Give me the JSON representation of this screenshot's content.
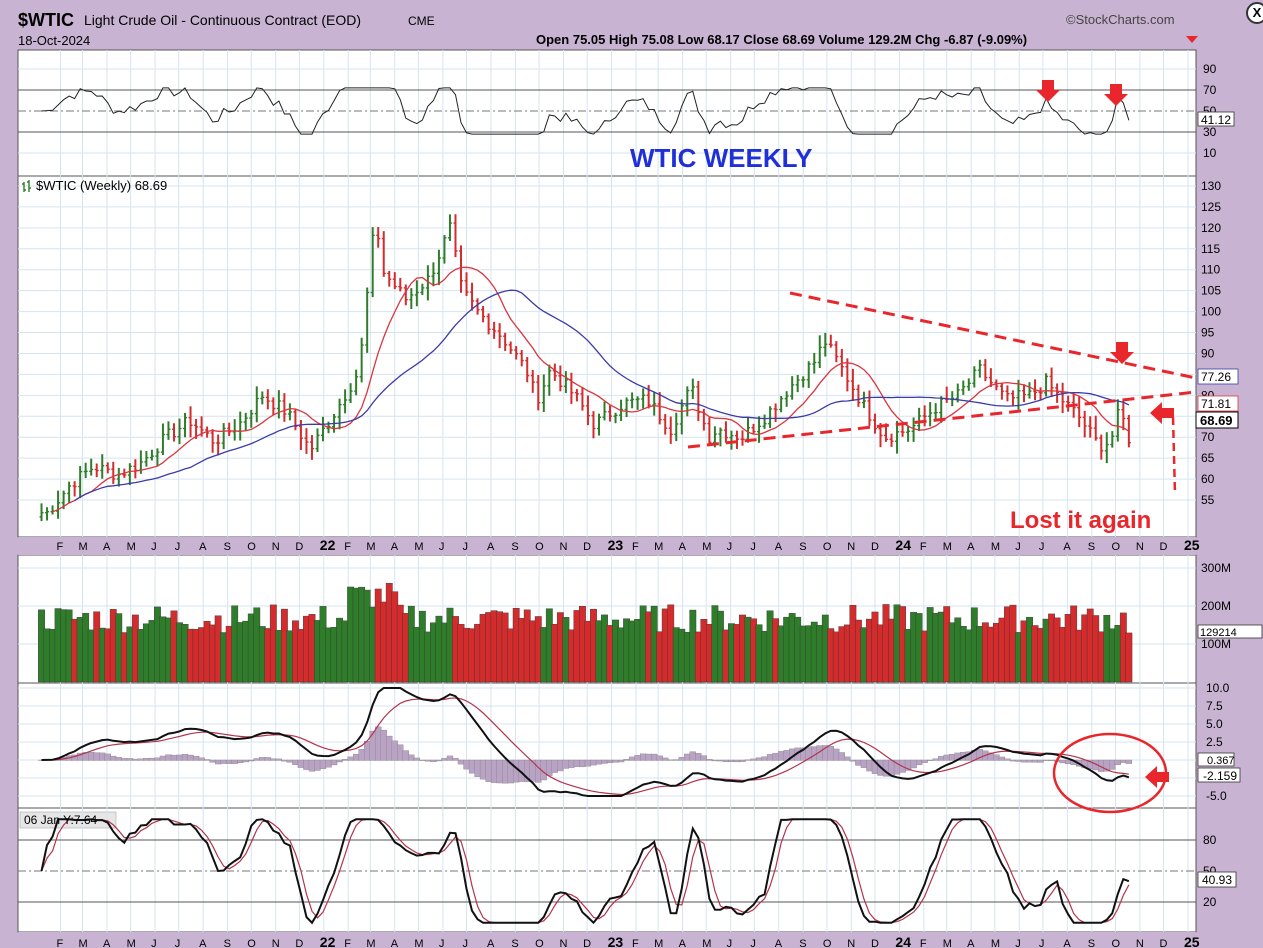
{
  "header": {
    "symbol": "$WTIC",
    "name": "Light Crude Oil - Continuous Contract (EOD)",
    "exchange": "CME",
    "date": "18-Oct-2024",
    "watermark": "©StockCharts.com",
    "ohlc_text": "Open 75.05  High 75.08  Low 68.17  Close 68.69  Volume 129.2M  Chg -6.87 (-9.09%)"
  },
  "annotations": {
    "weekly_title": "WTIC WEEKLY",
    "lost_it_again": "Lost it again"
  },
  "panels": {
    "rsi": {
      "value_label": "41.12",
      "ticks": [
        10,
        30,
        50,
        70,
        90
      ]
    },
    "price": {
      "legend": "$WTIC (Weekly) 68.69",
      "ticks": [
        55,
        60,
        65,
        70,
        75,
        80,
        85,
        90,
        95,
        100,
        105,
        110,
        115,
        120,
        125,
        130
      ],
      "labels": {
        "ma50": "77.26",
        "ma20": "71.81",
        "close": "68.69"
      }
    },
    "volume": {
      "ticks": [
        "100M",
        "200M",
        "300M"
      ],
      "value_label": "129214"
    },
    "macd": {
      "ticks": [
        "-5.0",
        "-2.5",
        "0.0",
        "2.5",
        "5.0",
        "7.5",
        "10.0"
      ],
      "hist_label": "0.367",
      "macd_label": "-2.159"
    },
    "stoch": {
      "info": "06 Jan Y:7.64",
      "ticks": [
        "20",
        "50",
        "80"
      ],
      "value_label": "40.93"
    }
  },
  "time_axis": [
    "F",
    "M",
    "A",
    "M",
    "J",
    "J",
    "A",
    "S",
    "O",
    "N",
    "D",
    "22",
    "F",
    "M",
    "A",
    "M",
    "J",
    "J",
    "A",
    "S",
    "O",
    "N",
    "D",
    "23",
    "F",
    "M",
    "A",
    "M",
    "J",
    "J",
    "A",
    "S",
    "O",
    "N",
    "D",
    "24",
    "F",
    "M",
    "A",
    "M",
    "J",
    "J",
    "A",
    "S",
    "O",
    "N",
    "D",
    "25"
  ],
  "colors": {
    "up": "#2f7d2a",
    "down": "#d42c2c",
    "ma_short": "#d9363e",
    "ma_long": "#3b3ba8",
    "trend": "#e8262b",
    "title": "#2030d8",
    "background": "#c9b3d3",
    "panel": "#ffffff"
  },
  "chart_data": {
    "type": "line",
    "series": [
      {
        "name": "$WTIC (Weekly)",
        "x": [
          "2021-01-15",
          "2021-02-15",
          "2021-03-15",
          "2021-04-15",
          "2021-05-15",
          "2021-06-15",
          "2021-07-15",
          "2021-08-15",
          "2021-09-15",
          "2021-10-15",
          "2021-11-15",
          "2021-12-15",
          "2022-01-15",
          "2022-02-15",
          "2022-03-08",
          "2022-03-15",
          "2022-04-15",
          "2022-05-15",
          "2022-06-10",
          "2022-06-25",
          "2022-07-15",
          "2022-08-15",
          "2022-09-15",
          "2022-09-28",
          "2022-10-15",
          "2022-11-15",
          "2022-12-10",
          "2023-01-15",
          "2023-02-15",
          "2023-03-17",
          "2023-04-12",
          "2023-05-04",
          "2023-05-15",
          "2023-06-15",
          "2023-07-15",
          "2023-08-15",
          "2023-09-15",
          "2023-09-28",
          "2023-10-15",
          "2023-11-15",
          "2023-12-13",
          "2024-01-15",
          "2024-02-15",
          "2024-03-15",
          "2024-04-12",
          "2024-05-15",
          "2024-06-15",
          "2024-07-05",
          "2024-07-25",
          "2024-08-15",
          "2024-09-10",
          "2024-09-25",
          "2024-10-07",
          "2024-10-18"
        ],
        "values": [
          52,
          59,
          63,
          61,
          64,
          70,
          74,
          69,
          73,
          80,
          76,
          67,
          76,
          86,
          124,
          110,
          103,
          108,
          120,
          105,
          100,
          94,
          86,
          79,
          86,
          80,
          73,
          78,
          79,
          72,
          82,
          70,
          72,
          70,
          75,
          82,
          88,
          93,
          88,
          78,
          70,
          72,
          77,
          80,
          86,
          79,
          80,
          83,
          79,
          75,
          68,
          69,
          77,
          68.69
        ]
      }
    ],
    "rsi_current": 41.12,
    "ma50_current": 77.26,
    "ma20_current": 71.81,
    "close": 68.69,
    "open": 75.05,
    "high": 75.08,
    "low": 68.17,
    "volume": "129.2M",
    "change": -6.87,
    "change_pct": -9.09,
    "macd_current": -2.159,
    "macd_hist_current": 0.367,
    "stoch_current": 40.93,
    "ylim": [
      50,
      132
    ],
    "grid": true
  }
}
